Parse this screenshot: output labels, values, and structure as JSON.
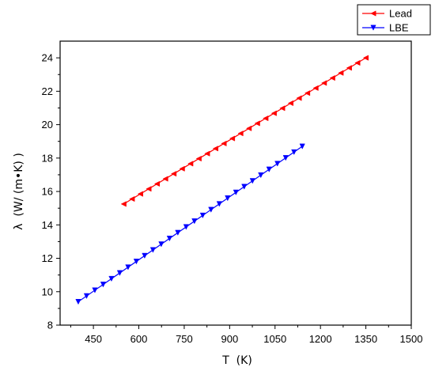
{
  "chart_data": {
    "type": "line",
    "xlabel": "T  (K)",
    "ylabel": "λ  (W/ (m•K) )",
    "xlim": [
      340,
      1500
    ],
    "ylim": [
      8,
      25
    ],
    "xticks": [
      450,
      600,
      750,
      900,
      1050,
      1200,
      1350,
      1500
    ],
    "yticks": [
      8,
      10,
      12,
      14,
      16,
      18,
      20,
      22,
      24
    ],
    "grid": false,
    "legend_position": "top-right",
    "series": [
      {
        "name": "Lead",
        "color": "#ff0000",
        "marker": "triangle-left",
        "x": [
          550,
          1350
        ],
        "y": [
          15.25,
          24.0
        ],
        "n_markers": 30
      },
      {
        "name": "LBE",
        "color": "#0000ff",
        "marker": "triangle-down",
        "x": [
          400,
          1140
        ],
        "y": [
          9.4,
          18.7
        ],
        "n_markers": 28
      }
    ]
  }
}
